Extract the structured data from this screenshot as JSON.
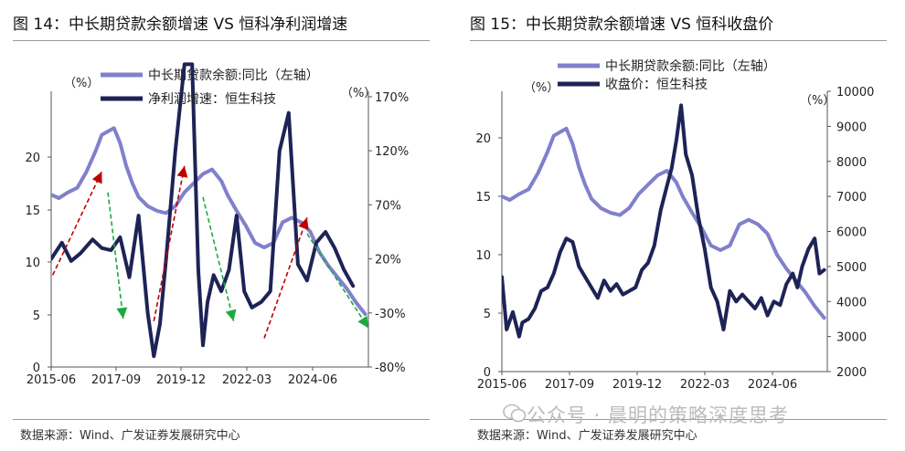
{
  "panel1": {
    "title": "图 14：中长期贷款余额增速 VS 恒科净利润增速",
    "source": "数据来源：Wind、广发证券发展研究中心"
  },
  "panel2": {
    "title": "图 15：中长期贷款余额增速 VS 恒科收盘价",
    "source": "数据来源：Wind、广发证券发展研究中心"
  },
  "watermark": "公众号 · 晨明的策略深度思考",
  "colors": {
    "light": "#8080cc",
    "dark": "#1e2356",
    "red": "#c00000",
    "green": "#1aab3e"
  },
  "chart_data": [
    {
      "type": "line",
      "left_unit": "（%）",
      "right_unit": "（%）",
      "x_ticks": [
        "2015-06",
        "2017-09",
        "2019-12",
        "2022-03",
        "2024-06"
      ],
      "left_ticks": [
        "0",
        "5",
        "10",
        "15",
        "20"
      ],
      "left_ylim": [
        0,
        24
      ],
      "right_ticks": [
        "-80%",
        "-30%",
        "20%",
        "70%",
        "120%",
        "170%"
      ],
      "right_ylim": [
        -80,
        175
      ],
      "series": [
        {
          "name": "中长期贷款余额:同比（左轴）",
          "axis": "left",
          "x": [
            2015.45,
            2015.7,
            2016.0,
            2016.3,
            2016.6,
            2016.9,
            2017.1,
            2017.3,
            2017.5,
            2017.7,
            2017.9,
            2018.1,
            2018.3,
            2018.6,
            2018.9,
            2019.2,
            2019.5,
            2019.8,
            2020.1,
            2020.4,
            2020.7,
            2021.0,
            2021.2,
            2021.5,
            2021.8,
            2022.1,
            2022.4,
            2022.7,
            2023.0,
            2023.3,
            2023.6,
            2023.9,
            2024.2,
            2024.5,
            2024.8,
            2025.1,
            2025.4,
            2025.7
          ],
          "y": [
            15,
            14.7,
            15.2,
            15.6,
            17.0,
            18.8,
            20.2,
            20.5,
            20.8,
            19.5,
            17.5,
            16.0,
            14.8,
            14.0,
            13.6,
            13.4,
            14.0,
            15.2,
            16.0,
            16.8,
            17.2,
            16.2,
            15.0,
            13.6,
            12.3,
            10.8,
            10.4,
            10.8,
            12.6,
            13.0,
            12.6,
            11.8,
            10.0,
            8.8,
            7.8,
            6.8,
            5.6,
            4.6
          ]
        },
        {
          "name": "净利润增速：恒生科技",
          "axis": "right",
          "x": [
            2015.45,
            2015.8,
            2016.1,
            2016.4,
            2016.8,
            2017.1,
            2017.4,
            2017.7,
            2018.0,
            2018.3,
            2018.6,
            2018.8,
            2019.0,
            2019.2,
            2019.5,
            2019.8,
            2020.05,
            2020.25,
            2020.4,
            2020.55,
            2020.75,
            2021.0,
            2021.25,
            2021.5,
            2021.75,
            2022.0,
            2022.3,
            2022.6,
            2022.9,
            2023.2,
            2023.5,
            2023.8,
            2024.1,
            2024.4,
            2024.7,
            2025.0,
            2025.3
          ],
          "y": [
            20,
            35,
            18,
            25,
            38,
            30,
            28,
            40,
            3,
            60,
            -30,
            -70,
            -40,
            20,
            120,
            200,
            200,
            10,
            -60,
            -20,
            5,
            -10,
            10,
            60,
            -10,
            -25,
            -20,
            -10,
            120,
            155,
            15,
            0,
            35,
            45,
            30,
            10,
            -5
          ]
        }
      ],
      "arrows": [
        {
          "color": "red",
          "from": [
            2015.5,
            8
          ],
          "to": [
            2017.1,
            17
          ]
        },
        {
          "color": "red",
          "from": [
            2018.8,
            4
          ],
          "to": [
            2019.8,
            17.5
          ]
        },
        {
          "color": "red",
          "from": [
            2022.4,
            2.5
          ],
          "to": [
            2023.8,
            13
          ]
        },
        {
          "color": "green",
          "from": [
            2017.3,
            15.2
          ],
          "to": [
            2017.8,
            4.2
          ]
        },
        {
          "color": "green",
          "from": [
            2020.4,
            14.8
          ],
          "to": [
            2021.4,
            4
          ]
        },
        {
          "color": "green",
          "from": [
            2023.8,
            11.6
          ],
          "to": [
            2025.8,
            3.4
          ]
        }
      ]
    },
    {
      "type": "line",
      "left_unit": "（%）",
      "right_unit": "（%）",
      "x_ticks": [
        "2015-06",
        "2017-09",
        "2019-12",
        "2022-03",
        "2024-06"
      ],
      "left_ticks": [
        "0",
        "5",
        "10",
        "15",
        "20"
      ],
      "left_ylim": [
        0,
        24
      ],
      "right_ticks": [
        "2000",
        "3000",
        "4000",
        "5000",
        "6000",
        "7000",
        "8000",
        "9000",
        "10000"
      ],
      "right_ylim": [
        2000,
        10000
      ],
      "series": [
        {
          "name": "中长期贷款余额:同比（左轴）",
          "axis": "left",
          "x": [
            2015.45,
            2015.7,
            2016.0,
            2016.3,
            2016.6,
            2016.9,
            2017.1,
            2017.3,
            2017.5,
            2017.7,
            2017.9,
            2018.1,
            2018.3,
            2018.6,
            2018.9,
            2019.2,
            2019.5,
            2019.8,
            2020.1,
            2020.4,
            2020.7,
            2021.0,
            2021.2,
            2021.5,
            2021.8,
            2022.1,
            2022.4,
            2022.7,
            2023.0,
            2023.3,
            2023.6,
            2023.9,
            2024.2,
            2024.5,
            2024.8,
            2025.1,
            2025.4,
            2025.7
          ],
          "y": [
            15,
            14.7,
            15.2,
            15.6,
            17.0,
            18.8,
            20.2,
            20.5,
            20.8,
            19.5,
            17.5,
            16.0,
            14.8,
            14.0,
            13.6,
            13.4,
            14.0,
            15.2,
            16.0,
            16.8,
            17.2,
            16.2,
            15.0,
            13.6,
            12.3,
            10.8,
            10.4,
            10.8,
            12.6,
            13.0,
            12.6,
            11.8,
            10.0,
            8.8,
            7.8,
            6.8,
            5.6,
            4.6
          ]
        },
        {
          "name": "收盘价：恒生科技",
          "axis": "right",
          "x": [
            2015.45,
            2015.6,
            2015.8,
            2016.0,
            2016.1,
            2016.3,
            2016.5,
            2016.7,
            2016.9,
            2017.1,
            2017.3,
            2017.5,
            2017.7,
            2017.9,
            2018.1,
            2018.3,
            2018.5,
            2018.7,
            2018.9,
            2019.1,
            2019.3,
            2019.5,
            2019.7,
            2019.9,
            2020.1,
            2020.3,
            2020.5,
            2020.7,
            2020.85,
            2021.0,
            2021.15,
            2021.3,
            2021.5,
            2021.7,
            2021.9,
            2022.1,
            2022.3,
            2022.5,
            2022.7,
            2022.9,
            2023.1,
            2023.3,
            2023.5,
            2023.7,
            2023.9,
            2024.1,
            2024.3,
            2024.5,
            2024.7,
            2024.85,
            2025.0,
            2025.2,
            2025.4,
            2025.55,
            2025.7
          ],
          "y": [
            4700,
            3200,
            3700,
            3000,
            3400,
            3500,
            3800,
            4300,
            4400,
            4800,
            5400,
            5800,
            5700,
            5000,
            4700,
            4400,
            4100,
            4600,
            4300,
            4500,
            4200,
            4300,
            4400,
            4900,
            5100,
            5600,
            6600,
            7300,
            7800,
            8600,
            9600,
            8200,
            7600,
            6400,
            5500,
            4400,
            4000,
            3200,
            4300,
            4000,
            4200,
            4000,
            3800,
            4100,
            3600,
            4000,
            3900,
            4500,
            4800,
            4400,
            5000,
            5500,
            5800,
            4800,
            4900
          ]
        }
      ]
    }
  ]
}
